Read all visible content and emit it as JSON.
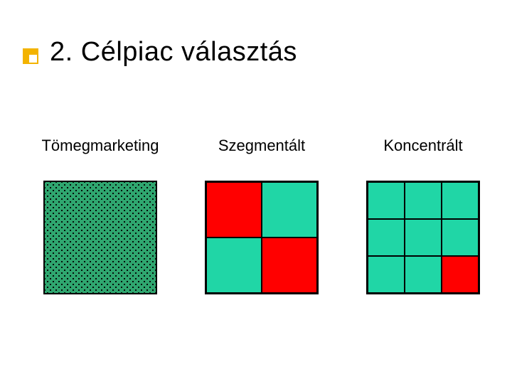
{
  "title": "2. Célpiac választás",
  "bullet": {
    "outer_color": "#f3b300",
    "inner_color": "#ffffff",
    "size": 22,
    "inner_size": 11
  },
  "columns": [
    {
      "label": "Tömegmarketing"
    },
    {
      "label": "Szegmentált"
    },
    {
      "label": "Koncentrált"
    }
  ],
  "diagrams": {
    "mass": {
      "type": "pattern",
      "fill_color": "#2fa66f",
      "dot_color": "#000000",
      "border_color": "#000000"
    },
    "segmented": {
      "type": "grid",
      "rows": 2,
      "cols": 2,
      "border_color": "#000000",
      "cells": [
        [
          "#ff0000",
          "#20d6a6"
        ],
        [
          "#20d6a6",
          "#ff0000"
        ]
      ]
    },
    "concentrated": {
      "type": "grid",
      "rows": 3,
      "cols": 3,
      "border_color": "#000000",
      "base_color": "#20d6a6",
      "highlight_color": "#ff0000",
      "cells": [
        [
          "#20d6a6",
          "#20d6a6",
          "#20d6a6"
        ],
        [
          "#20d6a6",
          "#20d6a6",
          "#20d6a6"
        ],
        [
          "#20d6a6",
          "#20d6a6",
          "#ff0000"
        ]
      ]
    }
  },
  "colors": {
    "background": "#ffffff",
    "text": "#000000"
  },
  "fonts": {
    "title_size": 38,
    "label_size": 22,
    "family": "Verdana"
  }
}
